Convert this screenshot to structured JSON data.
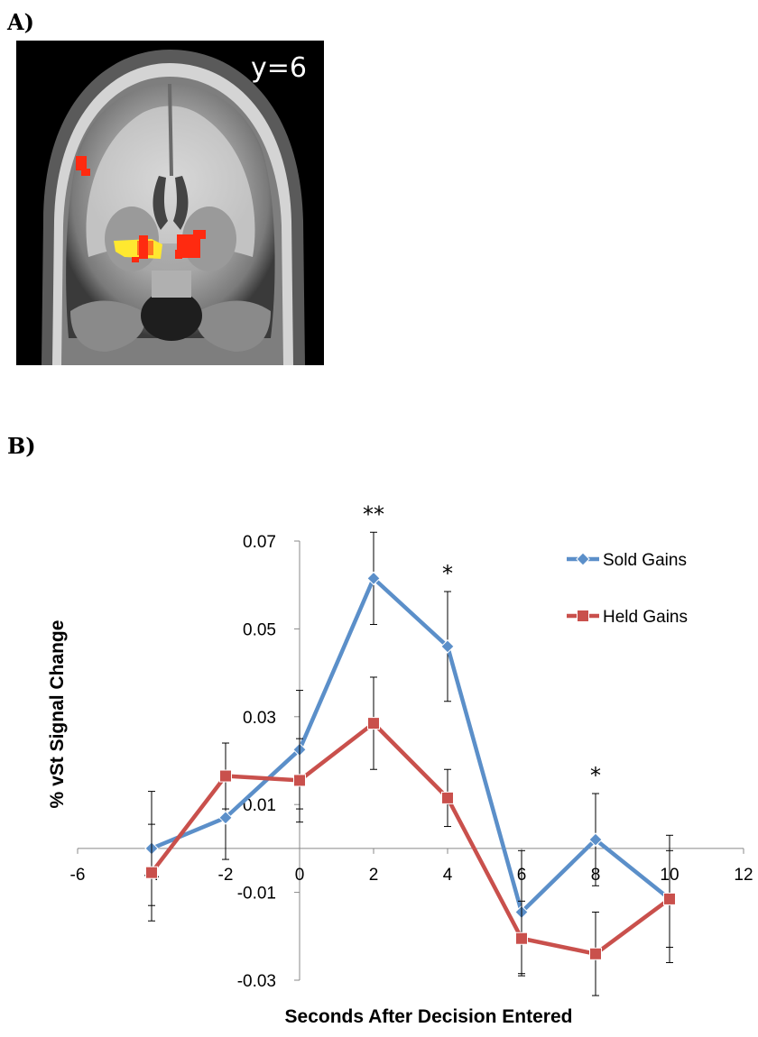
{
  "panel_a": {
    "label": "A)",
    "slice_label": "y=6"
  },
  "panel_b": {
    "label": "B)"
  },
  "chart_data": {
    "type": "line",
    "xlabel": "Seconds After Decision Entered",
    "ylabel": "% vSt Signal Change",
    "xlim": [
      -6,
      12
    ],
    "ylim": [
      -0.03,
      0.07
    ],
    "x_ticks": [
      "-6",
      "-4",
      "-2",
      "0",
      "2",
      "4",
      "6",
      "8",
      "10",
      "12"
    ],
    "x_tick_values": [
      -6,
      -4,
      -2,
      0,
      2,
      4,
      6,
      8,
      10,
      12
    ],
    "y_ticks": [
      "-0.03",
      "-0.01",
      "0.01",
      "0.03",
      "0.05",
      "0.07"
    ],
    "y_tick_values": [
      -0.03,
      -0.01,
      0.01,
      0.03,
      0.05,
      0.07
    ],
    "legend_position": "top-right",
    "series": [
      {
        "name": "Sold Gains",
        "color": "#5b8fc9",
        "marker": "diamond",
        "x": [
          -4,
          -2,
          0,
          2,
          4,
          6,
          8,
          10
        ],
        "y": [
          0.0,
          0.007,
          0.0225,
          0.0615,
          0.046,
          -0.0145,
          0.002,
          -0.0115
        ],
        "err": [
          0.013,
          0.0095,
          0.0135,
          0.0105,
          0.0125,
          0.014,
          0.0105,
          0.0145
        ]
      },
      {
        "name": "Held Gains",
        "color": "#c9504c",
        "marker": "square",
        "x": [
          -4,
          -2,
          0,
          2,
          4,
          6,
          8,
          10
        ],
        "y": [
          -0.0055,
          0.0165,
          0.0155,
          0.0285,
          0.0115,
          -0.0205,
          -0.024,
          -0.0115
        ],
        "err": [
          0.011,
          0.0075,
          0.0095,
          0.0105,
          0.0065,
          0.0085,
          0.0095,
          0.011
        ]
      }
    ],
    "annotations": [
      {
        "x": 2,
        "text": "**"
      },
      {
        "x": 4,
        "text": "*"
      },
      {
        "x": 8,
        "text": "*"
      }
    ]
  }
}
